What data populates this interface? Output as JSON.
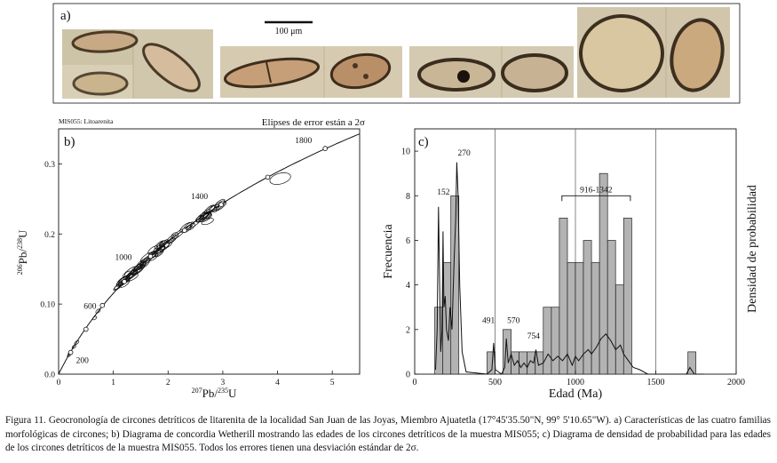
{
  "panel_a": {
    "label": "a)",
    "scale_bar_label": "100 μm",
    "crystals_description_colors": {
      "zircon_fill": "#c9a782",
      "dark_rim": "#4a3a28",
      "bg": "#d7cdb4"
    }
  },
  "panel_b": {
    "label": "b)",
    "sample_label": "MIS055: Litoarenita",
    "ellipse_note": "Elipses de error están a 2σ",
    "x_axis_label": "207Pb/235U",
    "y_axis_label": "206Pb/238U",
    "x_axis_sup": "207",
    "x_axis_base": "Pb/",
    "x_axis_sup2": "235",
    "x_axis_base2": "U",
    "y_axis_sup": "206",
    "y_axis_base": "Pb/",
    "y_axis_sup2": "238",
    "y_axis_base2": "U",
    "x_ticks": [
      "0",
      "1",
      "2",
      "3",
      "4",
      "5"
    ],
    "y_ticks": [
      "0.0",
      "0.10",
      "0.2",
      "0.3"
    ],
    "concordia_age_labels": [
      "200",
      "600",
      "1000",
      "1400",
      "1800"
    ]
  },
  "panel_c": {
    "label": "c)",
    "y_left_label": "Frecuencia",
    "y_right_label": "Densidad de probabilidad",
    "x_label": "Edad (Ma)",
    "x_ticks": [
      "0",
      "500",
      "1000",
      "1500",
      "2000"
    ],
    "y_ticks": [
      "0",
      "2",
      "4",
      "6",
      "8",
      "10"
    ],
    "peak_labels": [
      "152",
      "270",
      "491",
      "570",
      "754",
      "916-1342"
    ]
  },
  "chart_data": [
    {
      "type": "scatter",
      "name": "concordia",
      "xlim": [
        0,
        5.5
      ],
      "ylim": [
        0,
        0.35
      ],
      "concordia_points": [
        {
          "age": "200",
          "x": 0.22,
          "y": 0.031
        },
        {
          "age": "600",
          "x": 0.8,
          "y": 0.098
        },
        {
          "age": "1000",
          "x": 1.68,
          "y": 0.168
        },
        {
          "age": "1400",
          "x": 2.97,
          "y": 0.242
        },
        {
          "age": "1800",
          "x": 4.87,
          "y": 0.322
        }
      ],
      "extra_marker_points": [
        {
          "x": 0.5,
          "y": 0.064
        },
        {
          "x": 1.2,
          "y": 0.132
        },
        {
          "x": 2.3,
          "y": 0.205
        },
        {
          "x": 3.82,
          "y": 0.281
        }
      ]
    },
    {
      "type": "bar",
      "name": "histogram",
      "xlim": [
        0,
        2000
      ],
      "ylim": [
        0,
        11
      ],
      "bin_width": 50,
      "bins": [
        {
          "x0": 125,
          "count": 3
        },
        {
          "x0": 175,
          "count": 5
        },
        {
          "x0": 225,
          "count": 8
        },
        {
          "x0": 450,
          "count": 1
        },
        {
          "x0": 550,
          "count": 2
        },
        {
          "x0": 600,
          "count": 1
        },
        {
          "x0": 650,
          "count": 1
        },
        {
          "x0": 700,
          "count": 1
        },
        {
          "x0": 750,
          "count": 1
        },
        {
          "x0": 800,
          "count": 3
        },
        {
          "x0": 850,
          "count": 3
        },
        {
          "x0": 900,
          "count": 7
        },
        {
          "x0": 950,
          "count": 5
        },
        {
          "x0": 1000,
          "count": 5
        },
        {
          "x0": 1050,
          "count": 6
        },
        {
          "x0": 1100,
          "count": 5
        },
        {
          "x0": 1150,
          "count": 9
        },
        {
          "x0": 1200,
          "count": 6
        },
        {
          "x0": 1250,
          "count": 4
        },
        {
          "x0": 1300,
          "count": 7
        },
        {
          "x0": 1700,
          "count": 1
        }
      ],
      "pdf_points": [
        [
          130,
          0.2
        ],
        [
          140,
          2
        ],
        [
          148,
          7.5
        ],
        [
          155,
          4
        ],
        [
          162,
          1
        ],
        [
          170,
          2
        ],
        [
          176,
          6.4
        ],
        [
          182,
          3
        ],
        [
          190,
          3.5
        ],
        [
          198,
          2
        ],
        [
          210,
          1.5
        ],
        [
          220,
          3
        ],
        [
          232,
          2
        ],
        [
          245,
          5
        ],
        [
          255,
          7
        ],
        [
          262,
          9.5
        ],
        [
          270,
          8
        ],
        [
          280,
          4
        ],
        [
          295,
          1
        ],
        [
          320,
          0.1
        ],
        [
          450,
          0
        ],
        [
          480,
          0.2
        ],
        [
          491,
          1.4
        ],
        [
          502,
          0.2
        ],
        [
          540,
          0
        ],
        [
          560,
          0.3
        ],
        [
          570,
          1.6
        ],
        [
          582,
          0.5
        ],
        [
          600,
          0.9
        ],
        [
          620,
          0.4
        ],
        [
          640,
          0.6
        ],
        [
          660,
          0.3
        ],
        [
          680,
          0.5
        ],
        [
          700,
          0.3
        ],
        [
          720,
          0.6
        ],
        [
          740,
          0.5
        ],
        [
          754,
          1.1
        ],
        [
          770,
          0.4
        ],
        [
          800,
          0.5
        ],
        [
          830,
          0.9
        ],
        [
          860,
          0.6
        ],
        [
          890,
          0.8
        ],
        [
          920,
          0.6
        ],
        [
          950,
          0.9
        ],
        [
          980,
          0.4
        ],
        [
          1000,
          0.8
        ],
        [
          1020,
          0.6
        ],
        [
          1050,
          0.9
        ],
        [
          1080,
          1.1
        ],
        [
          1100,
          0.9
        ],
        [
          1130,
          1.2
        ],
        [
          1160,
          1.6
        ],
        [
          1190,
          1.8
        ],
        [
          1220,
          1.5
        ],
        [
          1250,
          1.1
        ],
        [
          1280,
          1.3
        ],
        [
          1300,
          0.9
        ],
        [
          1330,
          0.6
        ],
        [
          1360,
          0.3
        ],
        [
          1400,
          0.2
        ],
        [
          1450,
          0
        ],
        [
          1690,
          0
        ],
        [
          1712,
          0.3
        ],
        [
          1740,
          0
        ],
        [
          1800,
          0
        ]
      ],
      "vertical_gridlines": [
        500,
        1000,
        1500
      ],
      "bracket": {
        "x_start": 916,
        "x_end": 1342,
        "y": 8
      }
    }
  ],
  "caption": "Figura 11. Geocronología de circones detríticos de litarenita de la localidad San Juan de las Joyas, Miembro Ajuatetla (17°45'35.50\"N, 99° 5'10.65\"W). a) Características de las cuatro familias morfológicas de circones; b) Diagrama de concordia Wetherill mostrando las edades de los circones detríticos de la muestra MIS055; c) Diagrama de densidad de probabilidad para las edades de los circones detríticos de la muestra MIS055. Todos los errores tienen una desviación estándar de 2σ."
}
